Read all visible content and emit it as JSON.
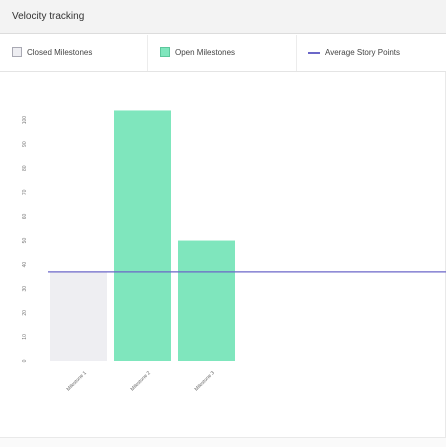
{
  "panel": {
    "title": "Velocity tracking"
  },
  "legend": {
    "closed": "Closed Milestones",
    "open": "Open Milestones",
    "average": "Average Story Points"
  },
  "colors": {
    "closed_fill": "#eeeef2",
    "closed_border": "#a9a9b3",
    "open_fill": "#7fe6bd",
    "open_border": "#5cc79c",
    "average_line": "#6b67c8",
    "axis_text": "#777777"
  },
  "chart_data": {
    "type": "bar",
    "title": "Velocity tracking",
    "categories": [
      "Milestone 1",
      "Milestone 2",
      "Milestone 3"
    ],
    "series": [
      {
        "name": "Closed Milestones",
        "values": [
          37,
          0,
          0
        ]
      },
      {
        "name": "Open Milestones",
        "values": [
          0,
          104,
          50
        ]
      }
    ],
    "average": {
      "name": "Average Story Points",
      "value": 37
    },
    "yticks": [
      0,
      10,
      20,
      30,
      40,
      50,
      60,
      70,
      80,
      90,
      100
    ],
    "ylim": [
      0,
      110
    ],
    "xlabel": "",
    "ylabel": ""
  }
}
